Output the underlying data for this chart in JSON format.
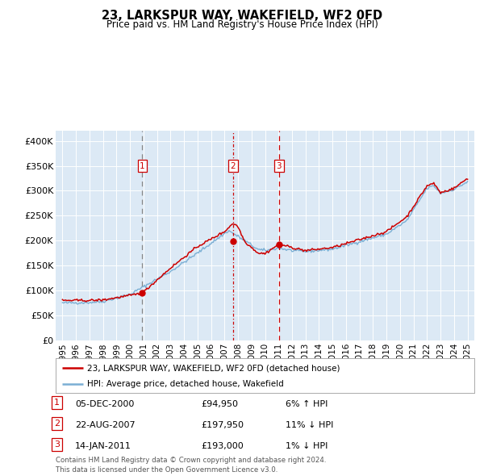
{
  "title": "23, LARKSPUR WAY, WAKEFIELD, WF2 0FD",
  "subtitle": "Price paid vs. HM Land Registry's House Price Index (HPI)",
  "background_color": "#dce9f5",
  "plot_bg_color": "#dce9f5",
  "red_line_label": "23, LARKSPUR WAY, WAKEFIELD, WF2 0FD (detached house)",
  "blue_line_label": "HPI: Average price, detached house, Wakefield",
  "sale_points": [
    {
      "label": "1",
      "date_x": 2000.92,
      "price": 94950,
      "vline_color": "#888888",
      "vline_ls": "dashed"
    },
    {
      "label": "2",
      "date_x": 2007.64,
      "price": 197950,
      "vline_color": "#cc0000",
      "vline_ls": "dashdot"
    },
    {
      "label": "3",
      "date_x": 2011.04,
      "price": 193000,
      "vline_color": "#cc0000",
      "vline_ls": "dashed"
    }
  ],
  "table_rows": [
    {
      "num": "1",
      "date": "05-DEC-2000",
      "price": "£94,950",
      "hpi": "6% ↑ HPI"
    },
    {
      "num": "2",
      "date": "22-AUG-2007",
      "price": "£197,950",
      "hpi": "11% ↓ HPI"
    },
    {
      "num": "3",
      "date": "14-JAN-2011",
      "price": "£193,000",
      "hpi": "1% ↓ HPI"
    }
  ],
  "footer": "Contains HM Land Registry data © Crown copyright and database right 2024.\nThis data is licensed under the Open Government Licence v3.0.",
  "ylim": [
    0,
    420000
  ],
  "xlim": [
    1994.5,
    2025.5
  ],
  "yticks": [
    0,
    50000,
    100000,
    150000,
    200000,
    250000,
    300000,
    350000,
    400000
  ],
  "ytick_labels": [
    "£0",
    "£50K",
    "£100K",
    "£150K",
    "£200K",
    "£250K",
    "£300K",
    "£350K",
    "£400K"
  ],
  "xtick_years": [
    1995,
    1996,
    1997,
    1998,
    1999,
    2000,
    2001,
    2002,
    2003,
    2004,
    2005,
    2006,
    2007,
    2008,
    2009,
    2010,
    2011,
    2012,
    2013,
    2014,
    2015,
    2016,
    2017,
    2018,
    2019,
    2020,
    2021,
    2022,
    2023,
    2024,
    2025
  ]
}
